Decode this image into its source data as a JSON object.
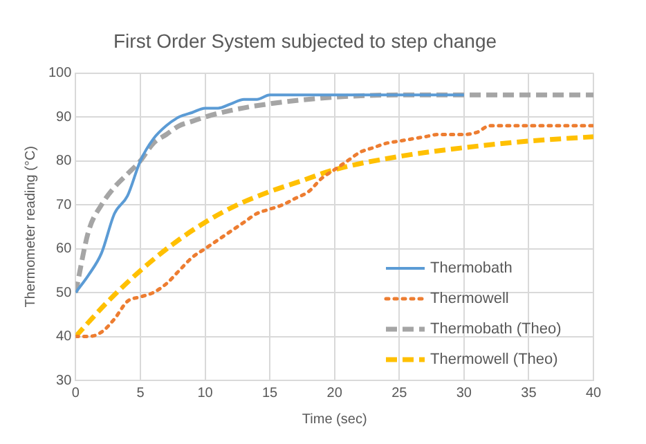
{
  "chart_data": {
    "type": "line",
    "title": "First Order System subjected to step change",
    "xlabel": "Time (sec)",
    "ylabel": "Thermometer reading (°C)",
    "xlim": [
      0,
      40
    ],
    "xticks": [
      0,
      5,
      10,
      15,
      20,
      25,
      30,
      35,
      40
    ],
    "ylim": [
      30,
      100
    ],
    "yticks": [
      30,
      40,
      50,
      60,
      70,
      80,
      90,
      100
    ],
    "grid": true,
    "legend": "bottom right",
    "marker": "none",
    "series": [
      {
        "name": "Thermobath",
        "color": "#5b9bd5",
        "line_style": "solid",
        "x": [
          0,
          1,
          2,
          3,
          4,
          5,
          6,
          7,
          8,
          9,
          10,
          11,
          12,
          13,
          14,
          15,
          20,
          25,
          30
        ],
        "values": [
          50,
          54,
          59,
          68,
          72,
          80,
          85,
          88,
          90,
          91,
          92,
          92,
          93,
          94,
          94,
          95,
          95,
          95,
          95
        ]
      },
      {
        "name": "Thermowell",
        "color": "#ed7d31",
        "line_style": "dotted",
        "x": [
          0,
          1,
          2,
          3,
          4,
          5,
          6,
          7,
          8,
          9,
          10,
          11,
          12,
          13,
          14,
          15,
          16,
          17,
          18,
          19,
          20,
          21,
          22,
          23,
          24,
          25,
          26,
          27,
          28,
          29,
          30,
          31,
          32,
          33,
          35,
          40
        ],
        "values": [
          40,
          40,
          41,
          44,
          48,
          49,
          50,
          52,
          55,
          58,
          60,
          62,
          64,
          66,
          68,
          69,
          70,
          71.5,
          73,
          76,
          78,
          80,
          82,
          83,
          84,
          84.5,
          85,
          85.5,
          86,
          86,
          86,
          86.5,
          88,
          88,
          88,
          88
        ]
      },
      {
        "name": "Thermobath (Theo)",
        "color": "#a5a5a5",
        "line_style": "dashed",
        "x": [
          0,
          1,
          2,
          3,
          4,
          5,
          6,
          7,
          8,
          9,
          10,
          12,
          15,
          20,
          25,
          30,
          40
        ],
        "values": [
          50,
          64,
          70,
          74,
          77,
          80,
          84,
          86,
          88,
          89,
          90,
          91.5,
          93,
          94.5,
          95,
          95,
          95
        ]
      },
      {
        "name": "Thermowell (Theo)",
        "color": "#ffc000",
        "line_style": "dashed",
        "x": [
          0,
          2.5,
          5,
          7.5,
          10,
          12.5,
          15,
          17.5,
          20,
          25,
          30,
          35,
          40
        ],
        "values": [
          40,
          48,
          55,
          61,
          66,
          70,
          73,
          75.5,
          78,
          81,
          83,
          84.5,
          85.5
        ]
      }
    ]
  }
}
